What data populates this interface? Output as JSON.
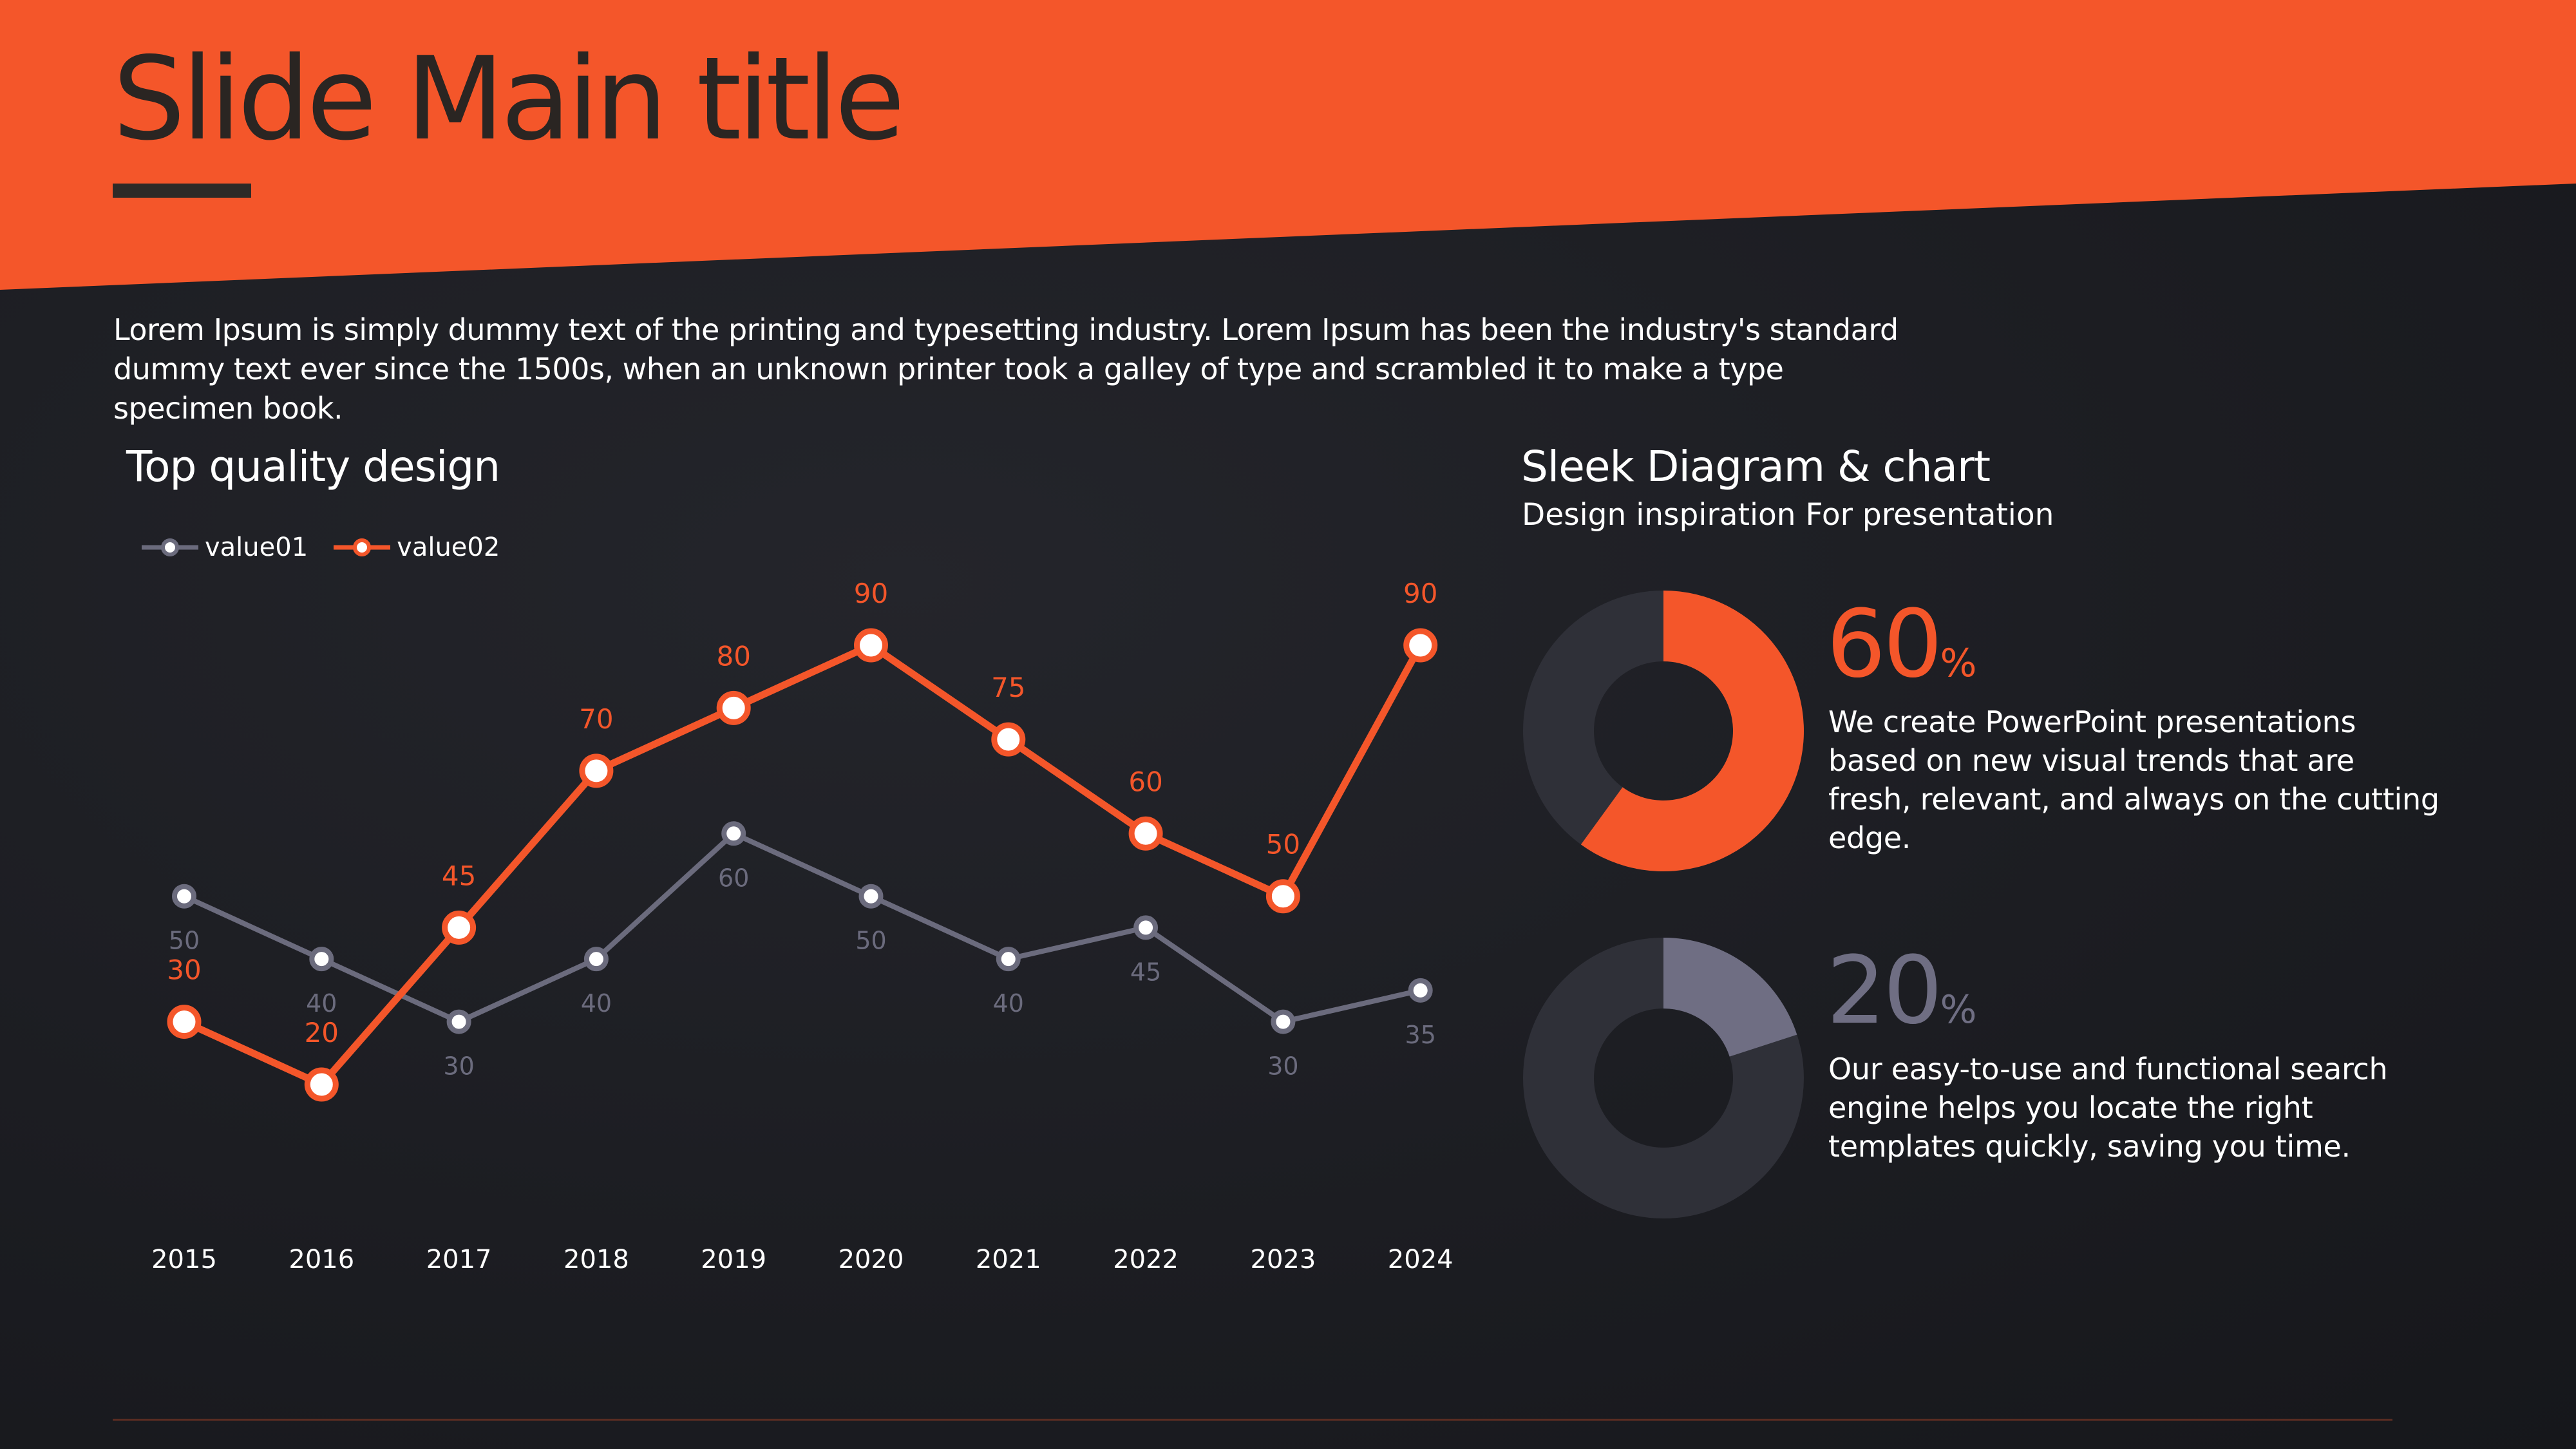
{
  "slide": {
    "title": "Slide Main title",
    "intro": "Lorem Ipsum is simply dummy text of the printing and typesetting industry. Lorem Ipsum has been the industry's standard dummy text ever since the 1500s, when an unknown printer took a galley of type and scrambled it to make a type specimen book."
  },
  "colors": {
    "accent": "#f4562a",
    "header": "#f4562a",
    "series1": "#6b6b7d",
    "series2": "#f4562a",
    "donut_track": "#2f3038",
    "donut_gray_fill": "#6f6e83",
    "title_text": "#2a2522"
  },
  "left_panel": {
    "title": "Top quality design"
  },
  "right_panel": {
    "title": "Sleek Diagram & chart",
    "subtitle": "Design inspiration For presentation",
    "stats": [
      {
        "value": 60,
        "value_text": "60",
        "unit": "%",
        "description": "We create PowerPoint presentations based on new visual trends that are fresh, relevant, and always on the cutting edge."
      },
      {
        "value": 20,
        "value_text": "20",
        "unit": "%",
        "description": "Our easy-to-use and functional search engine helps you locate the right templates quickly, saving you time."
      }
    ]
  },
  "chart_data": {
    "type": "line",
    "title": "Top quality design",
    "x": [
      "2015",
      "2016",
      "2017",
      "2018",
      "2019",
      "2020",
      "2021",
      "2022",
      "2023",
      "2024"
    ],
    "series": [
      {
        "name": "value01",
        "values": [
          50,
          40,
          30,
          40,
          60,
          50,
          40,
          45,
          30,
          35
        ]
      },
      {
        "name": "value02",
        "values": [
          30,
          20,
          45,
          70,
          80,
          90,
          75,
          60,
          50,
          90
        ]
      }
    ],
    "ylim": [
      20,
      90
    ],
    "xlabel": "",
    "ylabel": "",
    "grid": false,
    "legend": "top-left"
  }
}
